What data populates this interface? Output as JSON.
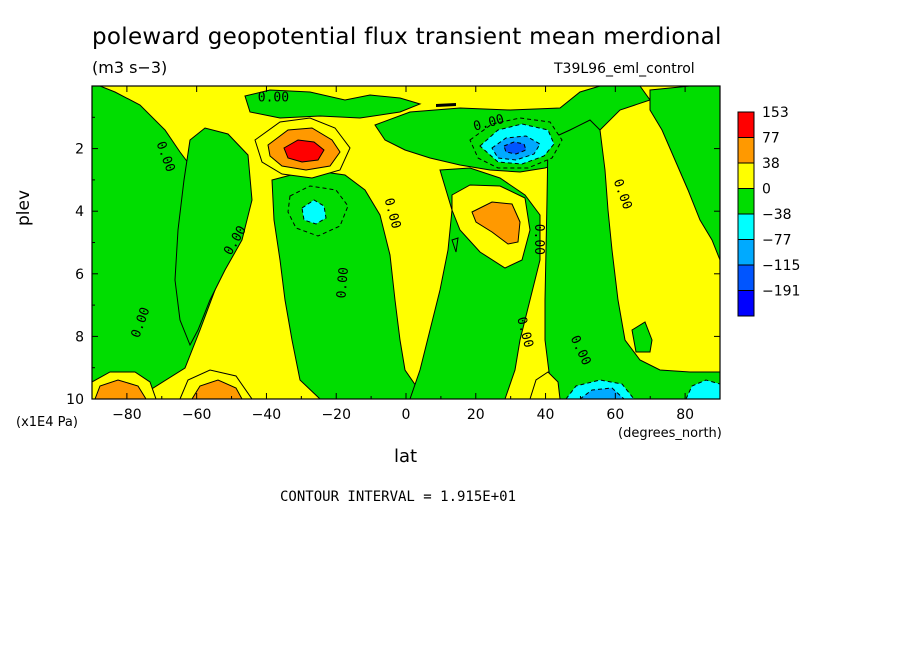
{
  "title": "poleward geopotential flux transient mean merdional",
  "units": "(m3 s−3)",
  "dataset": "T39L96_eml_control",
  "contour_interval": "CONTOUR INTERVAL = 1.915E+01",
  "chart_data": {
    "type": "heatmap",
    "title": "poleward geopotential flux transient mean merdional",
    "xlabel": "lat",
    "ylabel": "plev",
    "x_unit_label": "(degrees_north)",
    "y_unit_label": "(x1E4 Pa)",
    "xlim": [
      -90,
      90
    ],
    "ylim": [
      0,
      10
    ],
    "x_ticks": [
      -80,
      -60,
      -40,
      -20,
      0,
      20,
      40,
      60,
      80
    ],
    "x_tick_labels": [
      "−80",
      "−60",
      "−40",
      "−20",
      "0",
      "20",
      "40",
      "60",
      "80"
    ],
    "y_ticks": [
      2,
      4,
      6,
      8,
      10
    ],
    "y_tick_labels": [
      "2",
      "4",
      "6",
      "8",
      "10"
    ],
    "contour_labels": [
      "0.00"
    ],
    "legend": {
      "labels": [
        "153",
        "77",
        "38",
        "0",
        "−38",
        "−77",
        "−115",
        "−191"
      ],
      "colors": [
        "#ff0000",
        "#ff9900",
        "#ffff00",
        "#00dd00",
        "#00ffff",
        "#00aaff",
        "#0055ff",
        "#0000ff"
      ]
    },
    "features": [
      {
        "lat": -28,
        "plev": 2.2,
        "value": 153
      },
      {
        "lat": -28,
        "plev": 2.2,
        "value": 77
      },
      {
        "lat": 27,
        "plev": 4.3,
        "value": 77
      },
      {
        "lat": 30,
        "plev": 2.0,
        "value": -115
      },
      {
        "lat": -27,
        "plev": 4.1,
        "value": -77
      },
      {
        "lat": -83,
        "plev": 9.9,
        "value": 77
      },
      {
        "lat": -55,
        "plev": 9.9,
        "value": 77
      },
      {
        "lat": 53,
        "plev": 9.9,
        "value": -115
      },
      {
        "lat": 80,
        "plev": 9.8,
        "value": -77
      }
    ],
    "grid": false,
    "legend_position": "right"
  }
}
